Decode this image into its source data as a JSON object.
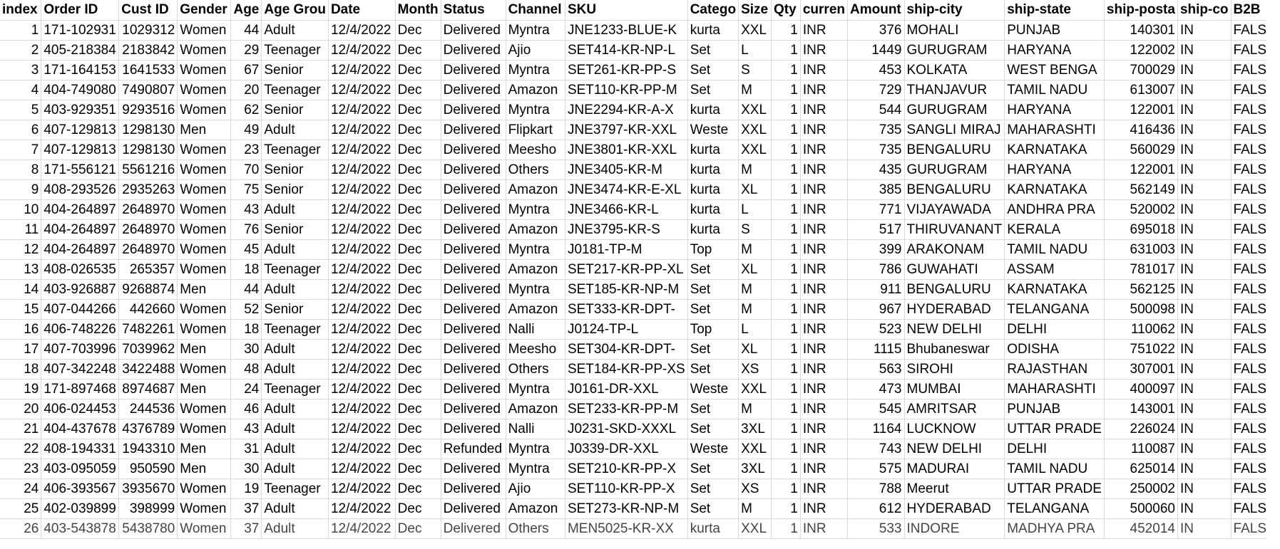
{
  "columns": [
    {
      "label": "index",
      "align": "right"
    },
    {
      "label": "Order ID",
      "align": "left"
    },
    {
      "label": "Cust ID",
      "align": "right"
    },
    {
      "label": "Gender",
      "align": "left"
    },
    {
      "label": "Age",
      "align": "right"
    },
    {
      "label": "Age Grou",
      "align": "left"
    },
    {
      "label": "Date",
      "align": "left"
    },
    {
      "label": "Month",
      "align": "left"
    },
    {
      "label": "Status",
      "align": "left"
    },
    {
      "label": "Channel",
      "align": "left"
    },
    {
      "label": "SKU",
      "align": "left"
    },
    {
      "label": "Catego",
      "align": "left"
    },
    {
      "label": "Size",
      "align": "left"
    },
    {
      "label": "Qty",
      "align": "right"
    },
    {
      "label": "curren",
      "align": "left"
    },
    {
      "label": "Amount",
      "align": "right"
    },
    {
      "label": "ship-city",
      "align": "left"
    },
    {
      "label": "ship-state",
      "align": "left"
    },
    {
      "label": "ship-posta",
      "align": "right"
    },
    {
      "label": "ship-co",
      "align": "left"
    },
    {
      "label": "B2B",
      "align": "left"
    }
  ],
  "rows": [
    [
      "1",
      "171-102931",
      "1029312",
      "Women",
      "44",
      "Adult",
      "12/4/2022",
      "Dec",
      "Delivered",
      "Myntra",
      "JNE1233-BLUE-K",
      "kurta",
      "XXL",
      "1",
      "INR",
      "376",
      "MOHALI",
      "PUNJAB",
      "140301",
      "IN",
      "FALSE"
    ],
    [
      "2",
      "405-218384",
      "2183842",
      "Women",
      "29",
      "Teenager",
      "12/4/2022",
      "Dec",
      "Delivered",
      "Ajio",
      "SET414-KR-NP-L",
      "Set",
      "L",
      "1",
      "INR",
      "1449",
      "GURUGRAM",
      "HARYANA",
      "122002",
      "IN",
      "FALSE"
    ],
    [
      "3",
      "171-164153",
      "1641533",
      "Women",
      "67",
      "Senior",
      "12/4/2022",
      "Dec",
      "Delivered",
      "Myntra",
      "SET261-KR-PP-S",
      "Set",
      "S",
      "1",
      "INR",
      "453",
      "KOLKATA",
      "WEST BENGA",
      "700029",
      "IN",
      "FALSE"
    ],
    [
      "4",
      "404-749080",
      "7490807",
      "Women",
      "20",
      "Teenager",
      "12/4/2022",
      "Dec",
      "Delivered",
      "Amazon",
      "SET110-KR-PP-M",
      "Set",
      "M",
      "1",
      "INR",
      "729",
      "THANJAVUR",
      "TAMIL NADU",
      "613007",
      "IN",
      "FALSE"
    ],
    [
      "5",
      "403-929351",
      "9293516",
      "Women",
      "62",
      "Senior",
      "12/4/2022",
      "Dec",
      "Delivered",
      "Myntra",
      "JNE2294-KR-A-X",
      "kurta",
      "XXL",
      "1",
      "INR",
      "544",
      "GURUGRAM",
      "HARYANA",
      "122001",
      "IN",
      "FALSE"
    ],
    [
      "6",
      "407-129813",
      "1298130",
      "Men",
      "49",
      "Adult",
      "12/4/2022",
      "Dec",
      "Delivered",
      "Flipkart",
      "JNE3797-KR-XXL",
      "Weste",
      "XXL",
      "1",
      "INR",
      "735",
      "SANGLI MIRAJ",
      "MAHARASHTI",
      "416436",
      "IN",
      "FALSE"
    ],
    [
      "7",
      "407-129813",
      "1298130",
      "Women",
      "23",
      "Teenager",
      "12/4/2022",
      "Dec",
      "Delivered",
      "Meesho",
      "JNE3801-KR-XXL",
      "kurta",
      "XXL",
      "1",
      "INR",
      "735",
      "BENGALURU",
      "KARNATAKA",
      "560029",
      "IN",
      "FALSE"
    ],
    [
      "8",
      "171-556121",
      "5561216",
      "Women",
      "70",
      "Senior",
      "12/4/2022",
      "Dec",
      "Delivered",
      "Others",
      "JNE3405-KR-M",
      "kurta",
      "M",
      "1",
      "INR",
      "435",
      "GURUGRAM",
      "HARYANA",
      "122001",
      "IN",
      "FALSE"
    ],
    [
      "9",
      "408-293526",
      "2935263",
      "Women",
      "75",
      "Senior",
      "12/4/2022",
      "Dec",
      "Delivered",
      "Amazon",
      "JNE3474-KR-E-XL",
      "kurta",
      "XL",
      "1",
      "INR",
      "385",
      "BENGALURU",
      "KARNATAKA",
      "562149",
      "IN",
      "FALSE"
    ],
    [
      "10",
      "404-264897",
      "2648970",
      "Women",
      "43",
      "Adult",
      "12/4/2022",
      "Dec",
      "Delivered",
      "Myntra",
      "JNE3466-KR-L",
      "kurta",
      "L",
      "1",
      "INR",
      "771",
      "VIJAYAWADA",
      "ANDHRA PRA",
      "520002",
      "IN",
      "FALSE"
    ],
    [
      "11",
      "404-264897",
      "2648970",
      "Women",
      "76",
      "Senior",
      "12/4/2022",
      "Dec",
      "Delivered",
      "Amazon",
      "JNE3795-KR-S",
      "kurta",
      "S",
      "1",
      "INR",
      "517",
      "THIRUVANANT",
      "KERALA",
      "695018",
      "IN",
      "FALSE"
    ],
    [
      "12",
      "404-264897",
      "2648970",
      "Women",
      "45",
      "Adult",
      "12/4/2022",
      "Dec",
      "Delivered",
      "Myntra",
      "J0181-TP-M",
      "Top",
      "M",
      "1",
      "INR",
      "399",
      "ARAKONAM",
      "TAMIL NADU",
      "631003",
      "IN",
      "FALSE"
    ],
    [
      "13",
      "408-026535",
      "265357",
      "Women",
      "18",
      "Teenager",
      "12/4/2022",
      "Dec",
      "Delivered",
      "Amazon",
      "SET217-KR-PP-XL",
      "Set",
      "XL",
      "1",
      "INR",
      "786",
      "GUWAHATI",
      "ASSAM",
      "781017",
      "IN",
      "FALSE"
    ],
    [
      "14",
      "403-926887",
      "9268874",
      "Men",
      "44",
      "Adult",
      "12/4/2022",
      "Dec",
      "Delivered",
      "Myntra",
      "SET185-KR-NP-M",
      "Set",
      "M",
      "1",
      "INR",
      "911",
      "BENGALURU",
      "KARNATAKA",
      "562125",
      "IN",
      "FALSE"
    ],
    [
      "15",
      "407-044266",
      "442660",
      "Women",
      "52",
      "Senior",
      "12/4/2022",
      "Dec",
      "Delivered",
      "Amazon",
      "SET333-KR-DPT-",
      "Set",
      "M",
      "1",
      "INR",
      "967",
      "HYDERABAD",
      "TELANGANA",
      "500098",
      "IN",
      "FALSE"
    ],
    [
      "16",
      "406-748226",
      "7482261",
      "Women",
      "18",
      "Teenager",
      "12/4/2022",
      "Dec",
      "Delivered",
      "Nalli",
      "J0124-TP-L",
      "Top",
      "L",
      "1",
      "INR",
      "523",
      "NEW DELHI",
      "DELHI",
      "110062",
      "IN",
      "FALSE"
    ],
    [
      "17",
      "407-703996",
      "7039962",
      "Men",
      "30",
      "Adult",
      "12/4/2022",
      "Dec",
      "Delivered",
      "Meesho",
      "SET304-KR-DPT-",
      "Set",
      "XL",
      "1",
      "INR",
      "1115",
      "Bhubaneswar",
      "ODISHA",
      "751022",
      "IN",
      "FALSE"
    ],
    [
      "18",
      "407-342248",
      "3422488",
      "Women",
      "48",
      "Adult",
      "12/4/2022",
      "Dec",
      "Delivered",
      "Others",
      "SET184-KR-PP-XS",
      "Set",
      "XS",
      "1",
      "INR",
      "563",
      "SIROHI",
      "RAJASTHAN",
      "307001",
      "IN",
      "FALSE"
    ],
    [
      "19",
      "171-897468",
      "8974687",
      "Men",
      "24",
      "Teenager",
      "12/4/2022",
      "Dec",
      "Delivered",
      "Myntra",
      "J0161-DR-XXL",
      "Weste",
      "XXL",
      "1",
      "INR",
      "473",
      "MUMBAI",
      "MAHARASHTI",
      "400097",
      "IN",
      "FALSE"
    ],
    [
      "20",
      "406-024453",
      "244536",
      "Women",
      "46",
      "Adult",
      "12/4/2022",
      "Dec",
      "Delivered",
      "Amazon",
      "SET233-KR-PP-M",
      "Set",
      "M",
      "1",
      "INR",
      "545",
      "AMRITSAR",
      "PUNJAB",
      "143001",
      "IN",
      "FALSE"
    ],
    [
      "21",
      "404-437678",
      "4376789",
      "Women",
      "43",
      "Adult",
      "12/4/2022",
      "Dec",
      "Delivered",
      "Nalli",
      "J0231-SKD-XXXL",
      "Set",
      "3XL",
      "1",
      "INR",
      "1164",
      "LUCKNOW",
      "UTTAR PRADE",
      "226024",
      "IN",
      "FALSE"
    ],
    [
      "22",
      "408-194331",
      "1943310",
      "Men",
      "31",
      "Adult",
      "12/4/2022",
      "Dec",
      "Refunded",
      "Myntra",
      "J0339-DR-XXL",
      "Weste",
      "XXL",
      "1",
      "INR",
      "743",
      "NEW DELHI",
      "DELHI",
      "110087",
      "IN",
      "FALSE"
    ],
    [
      "23",
      "403-095059",
      "950590",
      "Men",
      "30",
      "Adult",
      "12/4/2022",
      "Dec",
      "Delivered",
      "Myntra",
      "SET210-KR-PP-X",
      "Set",
      "3XL",
      "1",
      "INR",
      "575",
      "MADURAI",
      "TAMIL NADU",
      "625014",
      "IN",
      "FALSE"
    ],
    [
      "24",
      "406-393567",
      "3935670",
      "Women",
      "19",
      "Teenager",
      "12/4/2022",
      "Dec",
      "Delivered",
      "Ajio",
      "SET110-KR-PP-X",
      "Set",
      "XS",
      "1",
      "INR",
      "788",
      "Meerut",
      "UTTAR PRADE",
      "250002",
      "IN",
      "FALSE"
    ],
    [
      "25",
      "402-039899",
      "398999",
      "Women",
      "37",
      "Adult",
      "12/4/2022",
      "Dec",
      "Delivered",
      "Amazon",
      "SET273-KR-NP-M",
      "Set",
      "M",
      "1",
      "INR",
      "612",
      "HYDERABAD",
      "TELANGANA",
      "500060",
      "IN",
      "FALSE"
    ],
    [
      "26",
      "403-543878",
      "5438780",
      "Women",
      "37",
      "Adult",
      "12/4/2022",
      "Dec",
      "Delivered",
      "Others",
      "MEN5025-KR-XX",
      "kurta",
      "XXL",
      "1",
      "INR",
      "533",
      "INDORE",
      "MADHYA PRA",
      "452014",
      "IN",
      "FALSE"
    ]
  ]
}
